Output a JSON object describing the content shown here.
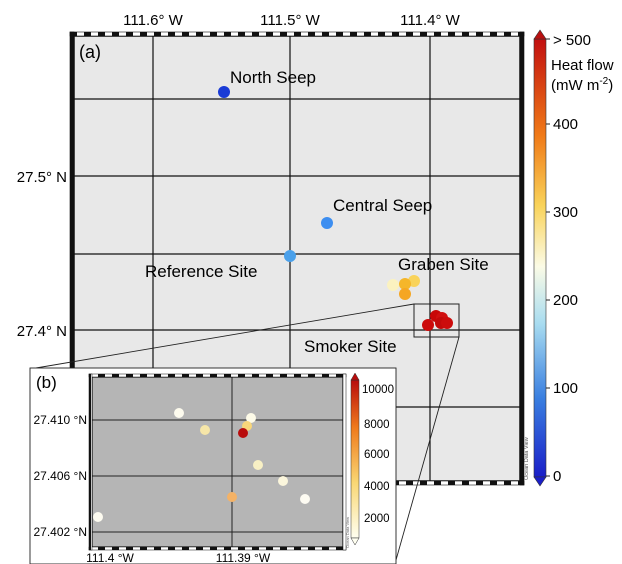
{
  "main_map": {
    "panel_label": "(a)",
    "lon_ticks": [
      "111.6° W",
      "111.5° W",
      "111.4° W"
    ],
    "lat_ticks": [
      "27.5° N",
      "27.4° N"
    ],
    "sites": [
      {
        "name": "North Seep"
      },
      {
        "name": "Central Seep"
      },
      {
        "name": "Reference Site"
      },
      {
        "name": "Graben Site"
      },
      {
        "name": "Smoker Site"
      }
    ],
    "colorbar": {
      "title_line1": "Heat flow",
      "title_line2": "(mW m",
      "title_sup": "-2",
      "title_end": ")",
      "ticks": [
        "> 500",
        "400",
        "300",
        "200",
        "100",
        "0"
      ],
      "range": [
        0,
        500
      ]
    },
    "credit": "Ocean Data View"
  },
  "inset_map": {
    "panel_label": "(b)",
    "lat_ticks": [
      "27.410 °N",
      "27.406 °N",
      "27.402 °N"
    ],
    "lon_ticks": [
      "111.4 °W",
      "111.39 °W"
    ],
    "colorbar": {
      "ticks": [
        "10000",
        "8000",
        "6000",
        "4000",
        "2000"
      ],
      "range": [
        0,
        11000
      ]
    },
    "credit": "Ocean Data View"
  },
  "colors": {
    "land_bg": "#e8e8e8",
    "inset_bg": "#b5b5b5",
    "north_seep": "#1a3bd6",
    "central_seep": "#3d8ef0",
    "reference_site": "#4aa0ea",
    "graben_site": "#f5a623",
    "smoker_site": "#cc0a0a"
  }
}
